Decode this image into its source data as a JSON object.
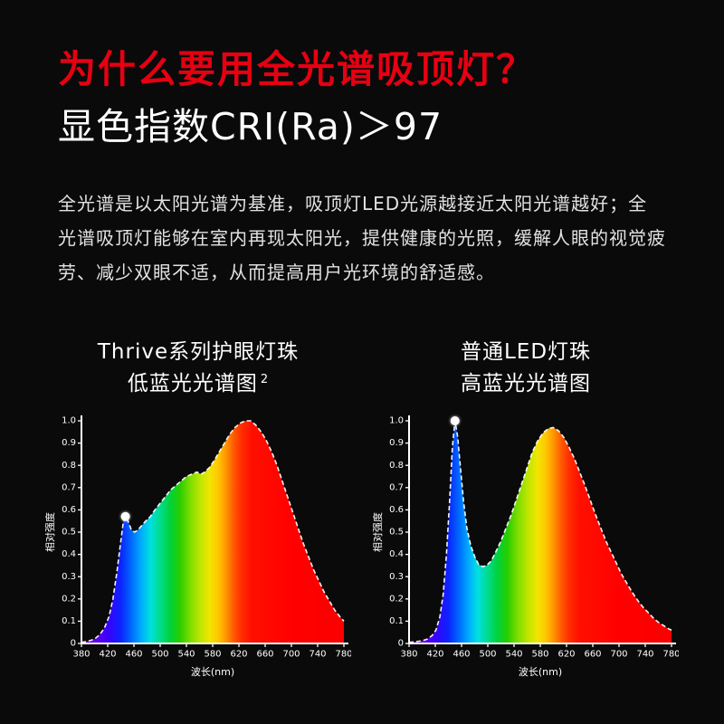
{
  "page": {
    "title": "为什么要用全光谱吸顶灯？",
    "subtitle": "显色指数CRI(Ra)＞97",
    "paragraph": "全光谱是以太阳光谱为基准，吸顶灯LED光源越接近太阳光谱越好；全光谱吸顶灯能够在室内再现太阳光，提供健康的光照，缓解人眼的视觉疲劳、减少双眼不适，从而提高用户光环境的舒适感。",
    "title_color": "#e60012",
    "background": "#0a0a0a",
    "text_color": "#ffffff"
  },
  "charts_section": {
    "left": {
      "title_line1": "Thrive系列护眼灯珠",
      "title_line2": "低蓝光光谱图",
      "superscript": "2"
    },
    "right": {
      "title_line1": "普通LED灯珠",
      "title_line2": "高蓝光光谱图"
    }
  },
  "chart_style": {
    "axis_color": "#ffffff",
    "tick_label_color": "#ffffff",
    "outline": "white-dashed",
    "marker_color": "#ffffff"
  },
  "spectrum_gradient": [
    [
      380,
      "#8a00d4"
    ],
    [
      400,
      "#6600e6"
    ],
    [
      420,
      "#3b00ff"
    ],
    [
      440,
      "#0b24ff"
    ],
    [
      455,
      "#0064ff"
    ],
    [
      470,
      "#00a8ff"
    ],
    [
      485,
      "#00e0e0"
    ],
    [
      500,
      "#00dc8c"
    ],
    [
      515,
      "#00d23c"
    ],
    [
      530,
      "#28cd00"
    ],
    [
      545,
      "#7adc00"
    ],
    [
      560,
      "#b9e600"
    ],
    [
      575,
      "#f0e600"
    ],
    [
      588,
      "#ffc800"
    ],
    [
      600,
      "#ff9600"
    ],
    [
      612,
      "#ff5a00"
    ],
    [
      624,
      "#ff2d00"
    ],
    [
      640,
      "#ff0f00"
    ],
    [
      700,
      "#ff0000"
    ],
    [
      780,
      "#fa0000"
    ]
  ],
  "chart_data": [
    {
      "type": "area",
      "title": "Thrive系列护眼灯珠 低蓝光光谱图",
      "xlabel": "波长(nm)",
      "ylabel": "相对强度",
      "xlim": [
        380,
        780
      ],
      "ylim": [
        0,
        1
      ],
      "x_ticks": [
        380,
        420,
        460,
        500,
        540,
        580,
        620,
        660,
        700,
        740,
        780
      ],
      "y_tick_labels": [
        "0",
        "0.1",
        "0.2",
        "0.3",
        "0.4",
        "0.5",
        "0.6",
        "0.7",
        "0.8",
        "0.9",
        "1.0"
      ],
      "marker": [
        447,
        0.57
      ],
      "points": [
        [
          380,
          0.005
        ],
        [
          390,
          0.01
        ],
        [
          400,
          0.02
        ],
        [
          408,
          0.04
        ],
        [
          415,
          0.07
        ],
        [
          422,
          0.12
        ],
        [
          428,
          0.2
        ],
        [
          434,
          0.32
        ],
        [
          440,
          0.46
        ],
        [
          444,
          0.55
        ],
        [
          447,
          0.57
        ],
        [
          451,
          0.55
        ],
        [
          456,
          0.51
        ],
        [
          461,
          0.5
        ],
        [
          466,
          0.51
        ],
        [
          472,
          0.53
        ],
        [
          478,
          0.55
        ],
        [
          485,
          0.57
        ],
        [
          492,
          0.6
        ],
        [
          500,
          0.63
        ],
        [
          508,
          0.66
        ],
        [
          516,
          0.69
        ],
        [
          524,
          0.71
        ],
        [
          532,
          0.73
        ],
        [
          540,
          0.75
        ],
        [
          548,
          0.76
        ],
        [
          556,
          0.77
        ],
        [
          562,
          0.76
        ],
        [
          568,
          0.77
        ],
        [
          575,
          0.79
        ],
        [
          582,
          0.82
        ],
        [
          590,
          0.86
        ],
        [
          598,
          0.9
        ],
        [
          606,
          0.94
        ],
        [
          614,
          0.97
        ],
        [
          622,
          0.99
        ],
        [
          630,
          1.0
        ],
        [
          638,
          1.0
        ],
        [
          646,
          0.98
        ],
        [
          654,
          0.95
        ],
        [
          662,
          0.91
        ],
        [
          670,
          0.86
        ],
        [
          678,
          0.8
        ],
        [
          686,
          0.73
        ],
        [
          694,
          0.66
        ],
        [
          702,
          0.59
        ],
        [
          710,
          0.52
        ],
        [
          718,
          0.45
        ],
        [
          726,
          0.39
        ],
        [
          734,
          0.33
        ],
        [
          742,
          0.28
        ],
        [
          750,
          0.23
        ],
        [
          758,
          0.19
        ],
        [
          766,
          0.15
        ],
        [
          774,
          0.12
        ],
        [
          780,
          0.1
        ]
      ]
    },
    {
      "type": "area",
      "title": "普通LED灯珠 高蓝光光谱图",
      "xlabel": "波长(nm)",
      "ylabel": "相对强度",
      "xlim": [
        380,
        780
      ],
      "ylim": [
        0,
        1
      ],
      "x_ticks": [
        380,
        420,
        460,
        500,
        540,
        580,
        620,
        660,
        700,
        740,
        780
      ],
      "y_tick_labels": [
        "0",
        "0.1",
        "0.2",
        "0.3",
        "0.4",
        "0.5",
        "0.6",
        "0.7",
        "0.8",
        "0.9",
        "1.0"
      ],
      "marker": [
        450,
        1.0
      ],
      "points": [
        [
          380,
          0.005
        ],
        [
          390,
          0.008
        ],
        [
          400,
          0.012
        ],
        [
          408,
          0.02
        ],
        [
          415,
          0.035
        ],
        [
          421,
          0.06
        ],
        [
          427,
          0.12
        ],
        [
          432,
          0.22
        ],
        [
          437,
          0.4
        ],
        [
          442,
          0.65
        ],
        [
          446,
          0.88
        ],
        [
          450,
          1.0
        ],
        [
          454,
          0.93
        ],
        [
          458,
          0.8
        ],
        [
          463,
          0.64
        ],
        [
          468,
          0.52
        ],
        [
          474,
          0.44
        ],
        [
          480,
          0.39
        ],
        [
          486,
          0.355
        ],
        [
          492,
          0.345
        ],
        [
          498,
          0.35
        ],
        [
          505,
          0.37
        ],
        [
          512,
          0.41
        ],
        [
          520,
          0.46
        ],
        [
          528,
          0.52
        ],
        [
          536,
          0.58
        ],
        [
          544,
          0.65
        ],
        [
          552,
          0.72
        ],
        [
          560,
          0.79
        ],
        [
          568,
          0.86
        ],
        [
          576,
          0.91
        ],
        [
          584,
          0.945
        ],
        [
          592,
          0.965
        ],
        [
          600,
          0.97
        ],
        [
          608,
          0.955
        ],
        [
          616,
          0.925
        ],
        [
          624,
          0.88
        ],
        [
          632,
          0.83
        ],
        [
          640,
          0.77
        ],
        [
          648,
          0.71
        ],
        [
          656,
          0.645
        ],
        [
          664,
          0.58
        ],
        [
          672,
          0.52
        ],
        [
          680,
          0.46
        ],
        [
          688,
          0.41
        ],
        [
          696,
          0.36
        ],
        [
          704,
          0.31
        ],
        [
          712,
          0.27
        ],
        [
          720,
          0.23
        ],
        [
          728,
          0.195
        ],
        [
          736,
          0.165
        ],
        [
          744,
          0.14
        ],
        [
          752,
          0.115
        ],
        [
          760,
          0.095
        ],
        [
          768,
          0.08
        ],
        [
          776,
          0.065
        ],
        [
          780,
          0.06
        ]
      ]
    }
  ]
}
